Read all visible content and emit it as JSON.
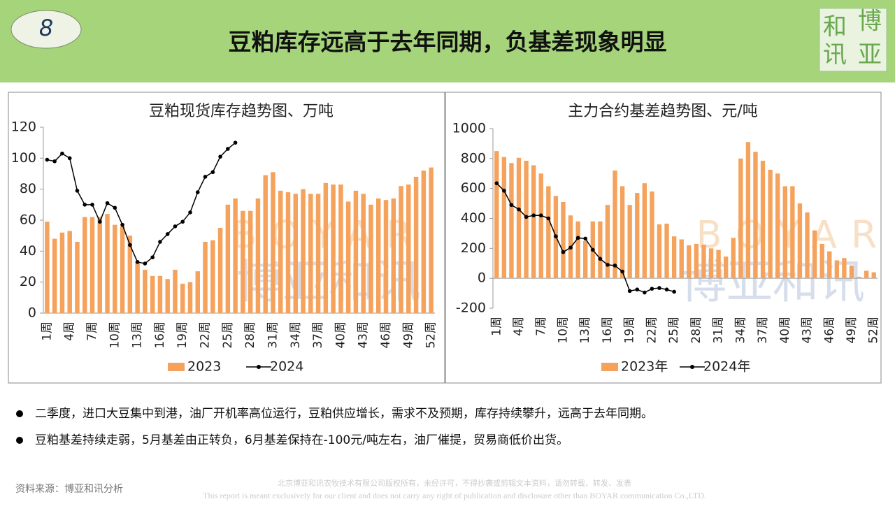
{
  "header": {
    "number": "8",
    "title": "豆粕库存远高于去年同期，负基差现象明显"
  },
  "logo": [
    "和",
    "博",
    "讯",
    "亚"
  ],
  "watermark": {
    "latin": "BOYAR",
    "chinese": "博亚和讯"
  },
  "chart_data": [
    {
      "type": "bar",
      "title": "豆粕现货库存趋势图、万吨",
      "legend": "bottom",
      "categories": [
        "1周",
        null,
        null,
        "4周",
        null,
        null,
        "7周",
        null,
        null,
        "10周",
        null,
        null,
        "13周",
        null,
        null,
        "16周",
        null,
        null,
        "19周",
        null,
        null,
        "22周",
        null,
        null,
        "25周",
        null,
        null,
        "28周",
        null,
        null,
        "31周",
        null,
        null,
        "34周",
        null,
        null,
        "37周",
        null,
        null,
        "40周",
        null,
        null,
        "43周",
        null,
        null,
        "46周",
        null,
        null,
        "49周",
        null,
        null,
        "52周"
      ],
      "ylim": [
        0,
        120
      ],
      "yticks": [
        0,
        20,
        40,
        60,
        80,
        100,
        120
      ],
      "series": [
        {
          "name": "2023",
          "type": "bar",
          "color": "#f4a25c",
          "values": [
            59,
            48,
            52,
            53,
            46,
            62,
            62,
            62,
            64,
            57,
            56,
            50,
            33,
            28,
            24,
            24,
            22,
            28,
            19,
            20,
            27,
            46,
            47,
            55,
            70,
            74,
            66,
            66,
            74,
            89,
            91,
            79,
            78,
            77,
            80,
            77,
            77,
            84,
            83,
            83,
            72,
            79,
            77,
            70,
            74,
            73,
            74,
            82,
            83,
            88,
            92,
            94
          ]
        },
        {
          "name": "2024",
          "type": "line",
          "color": "#000000",
          "values": [
            99,
            98,
            103,
            100,
            79,
            70,
            70,
            59,
            71,
            68,
            57,
            44,
            33,
            32,
            36,
            46,
            51,
            56,
            59,
            65,
            78,
            88,
            91,
            101,
            106,
            110,
            null,
            null,
            null,
            null,
            null,
            null,
            null,
            null,
            null,
            null,
            null,
            null,
            null,
            null,
            null,
            null,
            null,
            null,
            null,
            null,
            null,
            null,
            null,
            null,
            null,
            null
          ]
        }
      ]
    },
    {
      "type": "bar",
      "title": "主力合约基差趋势图、元/吨",
      "legend": "bottom",
      "categories": [
        "1周",
        null,
        null,
        "4周",
        null,
        null,
        "7周",
        null,
        null,
        "10周",
        null,
        null,
        "13周",
        null,
        null,
        "16周",
        null,
        null,
        "19周",
        null,
        null,
        "22周",
        null,
        null,
        "25周",
        null,
        null,
        "28周",
        null,
        null,
        "31周",
        null,
        null,
        "34周",
        null,
        null,
        "37周",
        null,
        null,
        "40周",
        null,
        null,
        "43周",
        null,
        null,
        "46周",
        null,
        null,
        "49周",
        null,
        null,
        "52周"
      ],
      "ylim": [
        -200,
        1000
      ],
      "yticks": [
        -200,
        0,
        200,
        400,
        600,
        800,
        1000
      ],
      "series": [
        {
          "name": "2023年",
          "type": "bar",
          "color": "#f4a25c",
          "values": [
            850,
            810,
            770,
            805,
            785,
            755,
            700,
            615,
            550,
            510,
            420,
            380,
            250,
            380,
            380,
            490,
            720,
            615,
            490,
            570,
            635,
            580,
            360,
            365,
            280,
            260,
            220,
            230,
            225,
            200,
            190,
            145,
            270,
            800,
            910,
            845,
            785,
            725,
            700,
            615,
            615,
            500,
            440,
            320,
            230,
            180,
            120,
            135,
            85,
            10,
            50,
            40
          ]
        },
        {
          "name": "2024年",
          "type": "line",
          "color": "#000000",
          "values": [
            635,
            585,
            490,
            460,
            410,
            420,
            420,
            400,
            280,
            175,
            205,
            270,
            265,
            190,
            130,
            90,
            85,
            45,
            -85,
            -75,
            -95,
            -70,
            -65,
            -75,
            -90,
            null,
            null,
            null,
            null,
            null,
            null,
            null,
            null,
            null,
            null,
            null,
            null,
            null,
            null,
            null,
            null,
            null,
            null,
            null,
            null,
            null,
            null,
            null,
            null,
            null,
            null,
            null
          ]
        }
      ]
    }
  ],
  "bullets": [
    "二季度，进口大豆集中到港，油厂开机率高位运行，豆粕供应增长，需求不及预期，库存持续攀升，远高于去年同期。",
    "豆粕基差持续走弱，5月基差由正转负，6月基差保持在-100元/吨左右，油厂催提，贸易商低价出货。"
  ],
  "source": "资料来源：博亚和讯分析",
  "footer": [
    "北京博亚和讯农牧技术有限公司版权所有，未经许可，不得抄袭或剪辑文本资料，请勿转载、转发、发表",
    "This report is meant exclusively for our client and does not carry any right of publication and disclosure other than BOYAR communication Co.,LTD."
  ]
}
